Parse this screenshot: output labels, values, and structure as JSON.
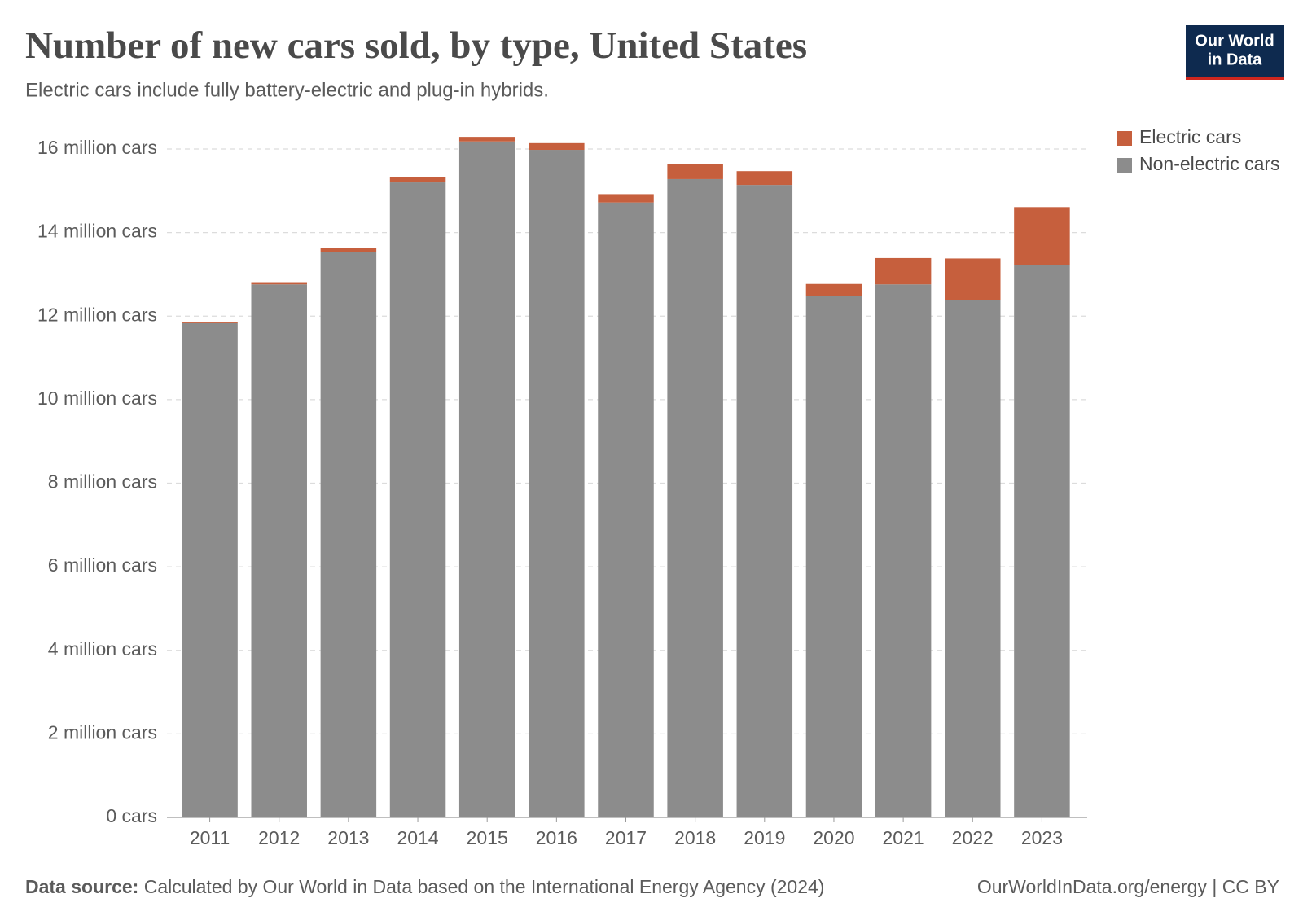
{
  "chart_data": {
    "type": "stacked-bar",
    "title": "Number of new cars sold, by type, United States",
    "subtitle": "Electric cars include fully battery-electric and plug-in hybrids.",
    "categories": [
      "2011",
      "2012",
      "2013",
      "2014",
      "2015",
      "2016",
      "2017",
      "2018",
      "2019",
      "2020",
      "2021",
      "2022",
      "2023"
    ],
    "series": [
      {
        "name": "Electric cars",
        "color": "#c65f3d",
        "values": [
          18000,
          53000,
          97000,
          120000,
          110000,
          160000,
          200000,
          360000,
          330000,
          290000,
          630000,
          990000,
          1390000
        ]
      },
      {
        "name": "Non-electric cars",
        "color": "#8c8c8c",
        "values": [
          11830000,
          12760000,
          13540000,
          15200000,
          16180000,
          15980000,
          14720000,
          15280000,
          15140000,
          12480000,
          12760000,
          12390000,
          13220000
        ]
      }
    ],
    "ylim": [
      0,
      16000000
    ],
    "yticks": [
      {
        "value": 0,
        "label": "0 cars"
      },
      {
        "value": 2000000,
        "label": "2 million cars"
      },
      {
        "value": 4000000,
        "label": "4 million cars"
      },
      {
        "value": 6000000,
        "label": "6 million cars"
      },
      {
        "value": 8000000,
        "label": "8 million cars"
      },
      {
        "value": 10000000,
        "label": "10 million cars"
      },
      {
        "value": 12000000,
        "label": "12 million cars"
      },
      {
        "value": 14000000,
        "label": "14 million cars"
      },
      {
        "value": 16000000,
        "label": "16 million cars"
      }
    ],
    "grid": true,
    "legend": "top-right",
    "source_label": "Data source:",
    "source": "Calculated by Our World in Data based on the International Energy Agency (2024)",
    "credit": "OurWorldInData.org/energy | CC BY",
    "logo": [
      "Our World",
      "in Data"
    ]
  }
}
